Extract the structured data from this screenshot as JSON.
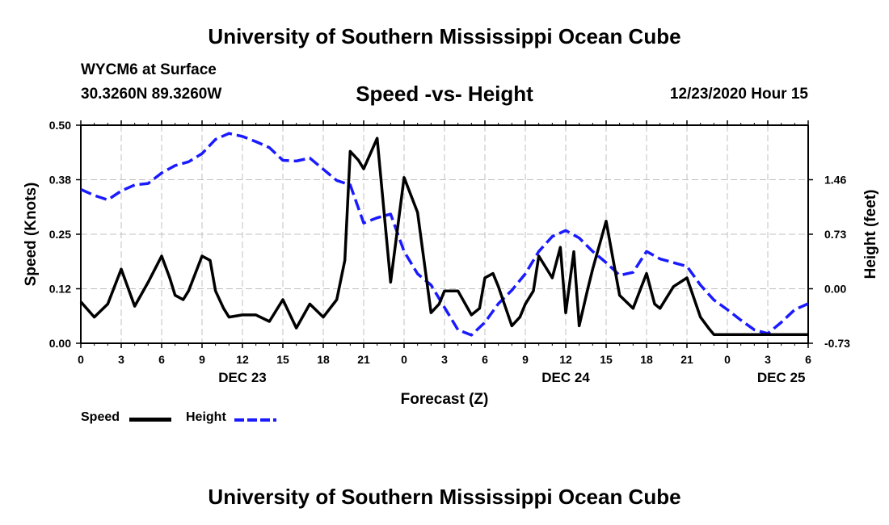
{
  "header": {
    "top_title": "University of Southern Mississippi Ocean Cube",
    "station": "WYCM6 at Surface",
    "coords": "30.3260N 89.3260W",
    "chart_title": "Speed -vs- Height",
    "datetime": "12/23/2020 Hour 15",
    "bottom_title": "University of Southern Mississippi Ocean Cube"
  },
  "legend": {
    "speed": "Speed",
    "height": "Height"
  },
  "colors": {
    "speed": "#000000",
    "height": "#1a1aff",
    "grid": "#c0c0c0"
  },
  "chart_data": {
    "type": "line",
    "title": "Speed -vs- Height",
    "xlabel": "Forecast (Z)",
    "ylabel": "Speed (Knots)",
    "y2label": "Height (feet)",
    "x_range_hours": [
      0,
      54
    ],
    "ylim": [
      0,
      0.5
    ],
    "y2lim": [
      -0.73,
      2.19
    ],
    "grid": true,
    "x_ticks": [
      {
        "h": 0,
        "label": "0"
      },
      {
        "h": 3,
        "label": "3"
      },
      {
        "h": 6,
        "label": "6"
      },
      {
        "h": 9,
        "label": "9"
      },
      {
        "h": 12,
        "label": "12"
      },
      {
        "h": 15,
        "label": "15"
      },
      {
        "h": 18,
        "label": "18"
      },
      {
        "h": 21,
        "label": "21"
      },
      {
        "h": 24,
        "label": "0"
      },
      {
        "h": 27,
        "label": "3"
      },
      {
        "h": 30,
        "label": "6"
      },
      {
        "h": 33,
        "label": "9"
      },
      {
        "h": 36,
        "label": "12"
      },
      {
        "h": 39,
        "label": "15"
      },
      {
        "h": 42,
        "label": "18"
      },
      {
        "h": 45,
        "label": "21"
      },
      {
        "h": 48,
        "label": "0"
      },
      {
        "h": 51,
        "label": "3"
      },
      {
        "h": 54,
        "label": "6"
      }
    ],
    "date_labels": [
      {
        "h": 12,
        "label": "DEC 23"
      },
      {
        "h": 36,
        "label": "DEC 24"
      },
      {
        "h": 52,
        "label": "DEC 25"
      }
    ],
    "y_ticks": [
      {
        "v": 0.0,
        "label": "0.00"
      },
      {
        "v": 0.125,
        "label": "0.12"
      },
      {
        "v": 0.25,
        "label": "0.25"
      },
      {
        "v": 0.375,
        "label": "0.38"
      },
      {
        "v": 0.5,
        "label": "0.50"
      }
    ],
    "y2_ticks": [
      {
        "v": -0.73,
        "label": "-0.73"
      },
      {
        "v": 0.0,
        "label": "0.00"
      },
      {
        "v": 0.73,
        "label": "0.73"
      },
      {
        "v": 1.46,
        "label": "1.46"
      }
    ],
    "series": [
      {
        "name": "Speed",
        "axis": "left",
        "x": [
          0,
          1,
          2,
          3,
          4,
          5,
          6,
          6.6,
          7,
          7.6,
          8,
          9,
          9.6,
          10,
          10.6,
          11,
          12,
          13,
          14,
          15,
          16,
          17,
          18,
          19,
          19.6,
          20,
          20.6,
          21,
          22,
          23,
          24,
          25,
          26,
          26.6,
          27,
          27.6,
          28,
          29,
          29.6,
          30,
          30.6,
          31,
          32,
          32.6,
          33,
          33.6,
          34,
          35,
          35.6,
          36,
          36.6,
          37,
          37.6,
          38,
          39,
          40,
          41,
          42,
          42.6,
          43,
          44,
          45,
          46,
          46.6,
          47,
          47.6,
          48,
          48.6,
          49,
          50,
          51,
          52,
          53,
          53.6,
          54
        ],
        "values": [
          0.095,
          0.06,
          0.09,
          0.17,
          0.085,
          0.14,
          0.2,
          0.15,
          0.11,
          0.1,
          0.12,
          0.2,
          0.19,
          0.12,
          0.08,
          0.06,
          0.065,
          0.065,
          0.05,
          0.1,
          0.035,
          0.09,
          0.06,
          0.1,
          0.19,
          0.44,
          0.42,
          0.4,
          0.47,
          0.14,
          0.38,
          0.3,
          0.07,
          0.09,
          0.12,
          0.12,
          0.12,
          0.065,
          0.08,
          0.15,
          0.16,
          0.13,
          0.04,
          0.06,
          0.09,
          0.12,
          0.2,
          0.15,
          0.22,
          0.07,
          0.21,
          0.04,
          0.12,
          0.17,
          0.28,
          0.11,
          0.08,
          0.16,
          0.09,
          0.08,
          0.13,
          0.15,
          0.06,
          0.035,
          0.02,
          0.02,
          0.02,
          0.02,
          0.02,
          0.02,
          0.02,
          0.02,
          0.02,
          0.02,
          0.02
        ]
      },
      {
        "name": "Height",
        "axis": "right",
        "x": [
          0,
          1,
          2,
          3,
          4,
          5,
          6,
          7,
          8,
          9,
          10,
          11,
          12,
          13,
          14,
          15,
          16,
          17,
          18,
          19,
          20,
          21,
          22,
          23,
          24,
          25,
          26,
          27,
          28,
          29,
          30,
          31,
          32,
          33,
          34,
          35,
          36,
          37,
          38,
          39,
          40,
          41,
          42,
          43,
          44,
          45,
          46,
          47,
          48,
          49,
          50,
          51,
          52,
          53,
          54
        ],
        "values": [
          1.33,
          1.25,
          1.19,
          1.31,
          1.39,
          1.41,
          1.55,
          1.65,
          1.7,
          1.81,
          2.0,
          2.08,
          2.04,
          1.97,
          1.89,
          1.72,
          1.71,
          1.75,
          1.6,
          1.45,
          1.39,
          0.88,
          0.95,
          1.0,
          0.5,
          0.2,
          0.05,
          -0.25,
          -0.55,
          -0.62,
          -0.45,
          -0.2,
          -0.02,
          0.2,
          0.5,
          0.7,
          0.78,
          0.68,
          0.5,
          0.35,
          0.18,
          0.22,
          0.5,
          0.4,
          0.35,
          0.3,
          0.05,
          -0.15,
          -0.28,
          -0.42,
          -0.55,
          -0.6,
          -0.45,
          -0.28,
          -0.2
        ]
      }
    ]
  }
}
